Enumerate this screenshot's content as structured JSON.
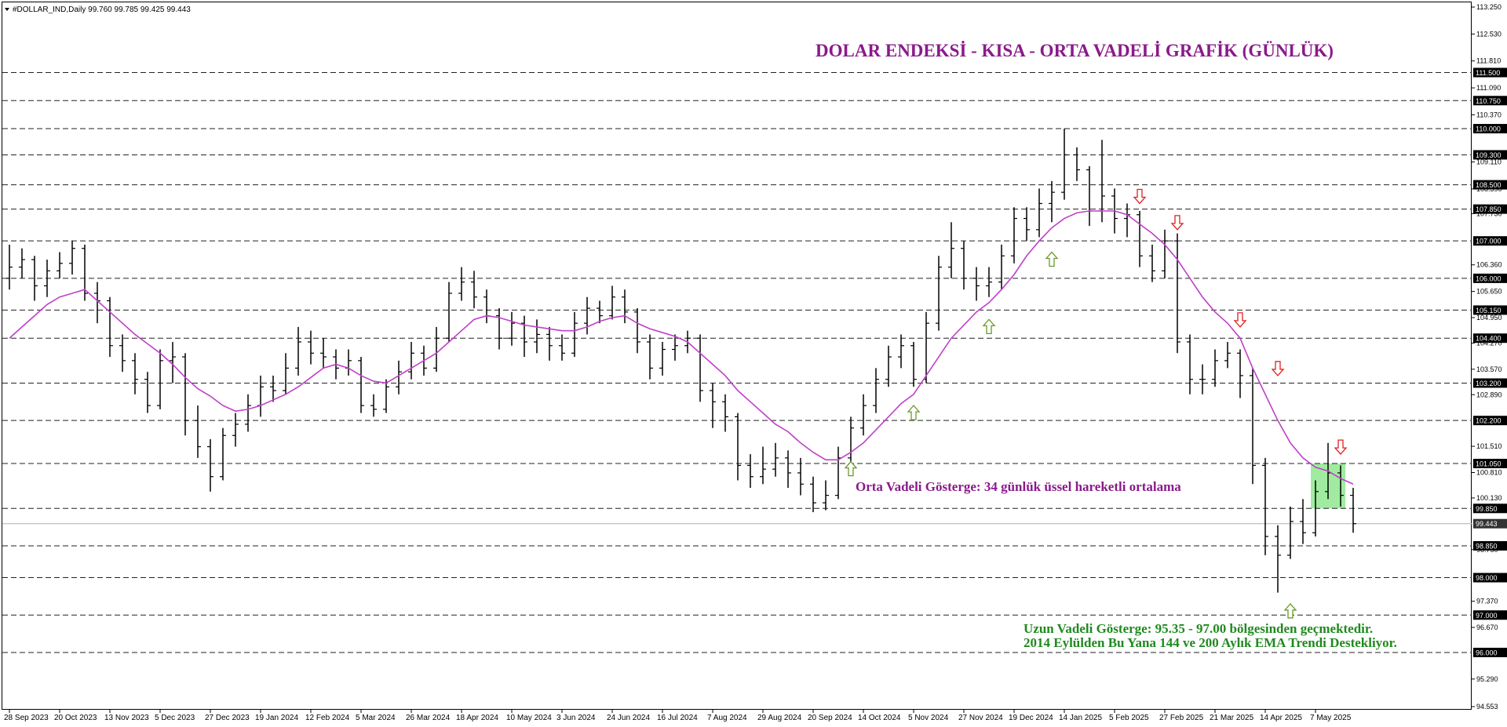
{
  "chart_data": {
    "type": "ohlc",
    "header": "#DOLLAR_IND,Daily  99.760 99.785 99.425 99.443",
    "title": "DOLAR ENDEKSİ - KISA - ORTA VADELİ GRAFİK (GÜNLÜK)",
    "ema_note": "Orta Vadeli Gösterge: 34 günlük üssel hareketli ortalama",
    "long_note": [
      "Uzun Vadeli Gösterge: 95.35 - 97.00 bölgesinden geçmektedir.",
      "2014 Eylülden Bu Yana 144 ve 200 Aylık EMA Trendi Destekliyor."
    ],
    "categories": [
      "28 Sep 2023",
      null,
      null,
      null,
      "20 Oct 2023",
      null,
      null,
      null,
      "13 Nov 2023",
      null,
      null,
      null,
      "5 Dec 2023",
      null,
      null,
      null,
      "27 Dec 2023",
      null,
      null,
      null,
      "19 Jan 2024",
      null,
      null,
      null,
      "12 Feb 2024",
      null,
      null,
      null,
      "5 Mar 2024",
      null,
      null,
      null,
      "26 Mar 2024",
      null,
      null,
      null,
      "18 Apr 2024",
      null,
      null,
      null,
      "10 May 2024",
      null,
      null,
      null,
      "3 Jun 2024",
      null,
      null,
      null,
      "24 Jun 2024",
      null,
      null,
      null,
      "16 Jul 2024",
      null,
      null,
      null,
      "7 Aug 2024",
      null,
      null,
      null,
      "29 Aug 2024",
      null,
      null,
      null,
      "20 Sep 2024",
      null,
      null,
      null,
      "14 Oct 2024",
      null,
      null,
      null,
      "5 Nov 2024",
      null,
      null,
      null,
      "27 Nov 2024",
      null,
      null,
      null,
      "19 Dec 2024",
      null,
      null,
      null,
      "14 Jan 2025",
      null,
      null,
      null,
      "5 Feb 2025",
      null,
      null,
      null,
      "27 Feb 2025",
      null,
      null,
      null,
      "21 Mar 2025",
      null,
      null,
      null,
      "14 Apr 2025",
      null,
      null,
      null,
      "7 May 2025",
      null,
      null,
      null
    ],
    "open": [
      106.0,
      106.3,
      106.5,
      105.8,
      106.2,
      106.4,
      106.8,
      105.6,
      105.4,
      104.2,
      103.8,
      103.3,
      102.6,
      103.8,
      103.9,
      102.2,
      101.5,
      100.7,
      101.8,
      102.1,
      102.6,
      103.1,
      103.0,
      103.6,
      104.3,
      104.0,
      103.9,
      103.6,
      103.8,
      102.6,
      102.5,
      103.1,
      103.5,
      104.0,
      103.6,
      104.4,
      105.6,
      105.9,
      105.5,
      105.0,
      104.4,
      104.8,
      104.3,
      104.5,
      104.2,
      104.0,
      104.8,
      105.2,
      105.0,
      105.5,
      105.1,
      104.3,
      103.6,
      104.1,
      104.2,
      104.4,
      103.0,
      102.7,
      102.3,
      101.0,
      100.7,
      100.9,
      101.2,
      100.8,
      100.5,
      100.0,
      100.2,
      101.2,
      102.0,
      102.6,
      103.3,
      103.9,
      104.2,
      103.3,
      104.8,
      106.3,
      106.8,
      106.0,
      105.8,
      105.9,
      106.6,
      107.6,
      107.3,
      108.0,
      108.3,
      109.3,
      108.9,
      107.8,
      108.2,
      107.6,
      107.7,
      106.6,
      106.2,
      107.0,
      104.3,
      103.3,
      103.3,
      103.8,
      104.0,
      103.4,
      101.0,
      99.1,
      98.6,
      99.5,
      99.2,
      100.3,
      100.8,
      100.2
    ],
    "high": [
      106.9,
      106.8,
      106.6,
      106.5,
      106.7,
      107.0,
      106.9,
      105.9,
      105.5,
      104.5,
      104.0,
      103.5,
      104.1,
      104.3,
      104.0,
      102.6,
      101.7,
      102.0,
      102.4,
      102.9,
      103.4,
      103.4,
      104.0,
      104.7,
      104.6,
      104.4,
      104.1,
      104.1,
      103.9,
      102.9,
      103.3,
      103.8,
      104.3,
      104.2,
      104.7,
      105.9,
      106.3,
      106.2,
      105.7,
      105.2,
      105.1,
      105.0,
      104.9,
      104.7,
      104.5,
      105.1,
      105.5,
      105.4,
      105.8,
      105.7,
      105.2,
      104.5,
      104.3,
      104.5,
      104.6,
      104.5,
      103.2,
      102.9,
      102.4,
      101.3,
      101.5,
      101.6,
      101.4,
      101.2,
      100.7,
      100.6,
      101.5,
      102.3,
      102.9,
      103.6,
      104.2,
      104.5,
      104.3,
      105.1,
      106.6,
      107.5,
      107.0,
      106.3,
      106.3,
      106.9,
      107.9,
      107.9,
      108.4,
      108.6,
      110.0,
      109.5,
      109.0,
      109.7,
      108.4,
      108.0,
      107.8,
      106.9,
      107.3,
      107.2,
      104.5,
      103.7,
      104.1,
      104.3,
      104.1,
      103.6,
      101.2,
      99.4,
      99.9,
      100.1,
      100.6,
      101.6,
      101.0,
      100.4
    ],
    "low": [
      105.7,
      106.0,
      105.4,
      105.5,
      106.0,
      106.1,
      105.4,
      104.8,
      103.9,
      103.5,
      102.9,
      102.4,
      102.5,
      103.2,
      101.8,
      101.2,
      100.3,
      100.6,
      101.5,
      101.9,
      102.3,
      102.7,
      102.9,
      103.4,
      103.7,
      103.6,
      103.3,
      103.4,
      102.4,
      102.3,
      102.4,
      102.9,
      103.3,
      103.4,
      103.5,
      104.3,
      105.4,
      105.2,
      104.8,
      104.1,
      104.2,
      103.9,
      104.0,
      103.8,
      103.8,
      103.9,
      104.5,
      104.8,
      104.9,
      104.8,
      104.0,
      103.3,
      103.4,
      103.8,
      104.0,
      102.7,
      102.0,
      101.9,
      100.6,
      100.4,
      100.5,
      100.7,
      100.4,
      100.2,
      99.75,
      99.8,
      100.1,
      101.0,
      101.8,
      102.4,
      103.1,
      103.6,
      103.1,
      103.2,
      104.6,
      106.0,
      105.7,
      105.4,
      105.5,
      105.7,
      106.4,
      107.0,
      107.1,
      107.5,
      108.1,
      108.6,
      107.4,
      107.5,
      107.2,
      107.1,
      106.3,
      105.9,
      106.0,
      104.0,
      102.9,
      102.9,
      103.1,
      103.6,
      102.8,
      100.5,
      98.6,
      97.6,
      98.5,
      98.9,
      99.1,
      100.1,
      99.9,
      99.2
    ],
    "close": [
      106.3,
      106.5,
      105.8,
      106.2,
      106.4,
      106.8,
      105.6,
      105.4,
      104.2,
      103.8,
      103.3,
      102.6,
      103.8,
      103.9,
      102.2,
      101.5,
      100.7,
      101.8,
      102.1,
      102.6,
      103.1,
      103.0,
      103.6,
      104.3,
      104.0,
      103.9,
      103.6,
      103.8,
      102.6,
      102.5,
      103.1,
      103.5,
      104.0,
      103.6,
      104.4,
      105.6,
      105.9,
      105.5,
      105.0,
      104.4,
      104.8,
      104.3,
      104.5,
      104.2,
      104.0,
      104.8,
      105.2,
      105.0,
      105.5,
      105.1,
      104.3,
      103.6,
      104.1,
      104.2,
      104.4,
      103.0,
      102.7,
      102.3,
      101.0,
      100.7,
      100.9,
      101.2,
      100.8,
      100.5,
      100.0,
      100.2,
      101.2,
      102.0,
      102.6,
      103.3,
      103.9,
      104.2,
      103.3,
      104.8,
      106.3,
      106.8,
      106.0,
      105.8,
      105.9,
      106.6,
      107.6,
      107.3,
      108.0,
      108.3,
      109.3,
      108.9,
      107.8,
      108.2,
      107.6,
      107.7,
      106.6,
      106.2,
      107.0,
      104.3,
      103.3,
      103.3,
      103.8,
      104.0,
      103.4,
      101.0,
      99.1,
      98.6,
      99.5,
      99.2,
      100.3,
      100.8,
      100.2,
      99.443
    ],
    "bar_color": "#000000",
    "ema": {
      "color": "#c040c8",
      "values": [
        104.4,
        104.7,
        105.0,
        105.3,
        105.5,
        105.6,
        105.7,
        105.4,
        105.1,
        104.8,
        104.5,
        104.25,
        104.0,
        103.7,
        103.35,
        103.05,
        102.85,
        102.6,
        102.45,
        102.5,
        102.6,
        102.75,
        102.9,
        103.1,
        103.35,
        103.6,
        103.7,
        103.6,
        103.4,
        103.25,
        103.2,
        103.4,
        103.6,
        103.8,
        104.0,
        104.3,
        104.6,
        104.9,
        105.0,
        104.95,
        104.85,
        104.75,
        104.7,
        104.65,
        104.6,
        104.6,
        104.7,
        104.85,
        104.95,
        105.0,
        104.8,
        104.65,
        104.55,
        104.45,
        104.3,
        104.0,
        103.7,
        103.4,
        103.0,
        102.7,
        102.4,
        102.1,
        101.9,
        101.6,
        101.35,
        101.15,
        101.15,
        101.35,
        101.6,
        101.95,
        102.3,
        102.65,
        102.9,
        103.4,
        103.9,
        104.4,
        104.75,
        105.1,
        105.35,
        105.7,
        106.1,
        106.6,
        107.0,
        107.35,
        107.6,
        107.75,
        107.8,
        107.8,
        107.8,
        107.7,
        107.45,
        107.2,
        106.9,
        106.5,
        106.0,
        105.5,
        105.1,
        104.8,
        104.4,
        103.6,
        102.9,
        102.2,
        101.6,
        101.2,
        100.95,
        100.85,
        100.65,
        100.5
      ]
    },
    "ylim": [
      94.553,
      113.25
    ],
    "yticks": [
      {
        "value": 113.25,
        "label": "113.250"
      },
      {
        "value": 112.53,
        "label": "112.530"
      },
      {
        "value": 111.81,
        "label": "111.810"
      },
      {
        "value": 111.09,
        "label": "111.090"
      },
      {
        "value": 110.37,
        "label": "110.370"
      },
      {
        "value": 109.11,
        "label": "109.110"
      },
      {
        "value": 108.39,
        "label": "108.390"
      },
      {
        "value": 107.73,
        "label": "107.730"
      },
      {
        "value": 106.36,
        "label": "106.360"
      },
      {
        "value": 105.65,
        "label": "105.650"
      },
      {
        "value": 104.95,
        "label": "104.950"
      },
      {
        "value": 104.27,
        "label": "104.270"
      },
      {
        "value": 103.57,
        "label": "103.570"
      },
      {
        "value": 102.89,
        "label": "102.890"
      },
      {
        "value": 101.51,
        "label": "101.510"
      },
      {
        "value": 100.81,
        "label": "100.810"
      },
      {
        "value": 100.13,
        "label": "100.130"
      },
      {
        "value": 98.75,
        "label": "98.750"
      },
      {
        "value": 97.37,
        "label": "97.370"
      },
      {
        "value": 96.67,
        "label": "96.670"
      },
      {
        "value": 95.29,
        "label": "95.290"
      },
      94.553
    ],
    "levels": [
      {
        "value": 111.5,
        "label": "111.500"
      },
      {
        "value": 110.75,
        "label": "110.750"
      },
      {
        "value": 110,
        "label": "110.000"
      },
      {
        "value": 109.3,
        "label": "109.300"
      },
      {
        "value": 108.5,
        "label": "108.500"
      },
      {
        "value": 107.85,
        "label": "107.850"
      },
      {
        "value": 107,
        "label": "107.000"
      },
      {
        "value": 106,
        "label": "106.000"
      },
      {
        "value": 105.15,
        "label": "105.150"
      },
      {
        "value": 104.4,
        "label": "104.400"
      },
      {
        "value": 103.2,
        "label": "103.200"
      },
      {
        "value": 102.2,
        "label": "102.200"
      },
      {
        "value": 101.05,
        "label": "101.050"
      },
      {
        "value": 99.85,
        "label": "99.850"
      },
      {
        "value": 98.85,
        "label": "98.850"
      },
      {
        "value": 98,
        "label": "98.000"
      },
      {
        "value": 97,
        "label": "97.000"
      },
      {
        "value": 96,
        "label": "96.000"
      }
    ],
    "last_price": 99.443,
    "arrows": [
      {
        "dir": "up",
        "bar": 67,
        "price": 101.1
      },
      {
        "dir": "up",
        "bar": 72,
        "price": 102.6
      },
      {
        "dir": "up",
        "bar": 78,
        "price": 104.9
      },
      {
        "dir": "up",
        "bar": 83,
        "price": 106.7
      },
      {
        "dir": "up",
        "bar": 102,
        "price": 97.3
      },
      {
        "dir": "down",
        "bar": 90,
        "price": 108.0
      },
      {
        "dir": "down",
        "bar": 93,
        "price": 107.3
      },
      {
        "dir": "down",
        "bar": 98,
        "price": 104.7
      },
      {
        "dir": "down",
        "bar": 101,
        "price": 103.4
      },
      {
        "dir": "down",
        "bar": 106,
        "price": 101.3
      }
    ],
    "zone": {
      "from": 104,
      "to": 106,
      "low": 99.85,
      "high": 101.05,
      "color": "#8fe88f"
    },
    "grid": false
  }
}
